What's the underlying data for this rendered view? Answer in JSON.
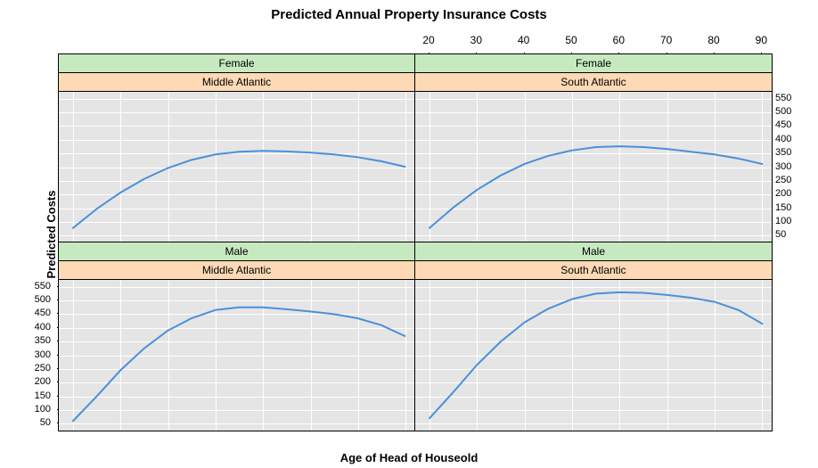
{
  "title": "Predicted Annual Property Insurance Costs",
  "xlabel": "Age of Head of Houseold",
  "ylabel": "Predicted Costs",
  "title_fontsize": 15,
  "label_fontsize": 13,
  "tick_fontsize": 12,
  "ytick_fontsize": 11,
  "strip_fontsize": 12,
  "colors": {
    "background": "#ffffff",
    "panel_bg": "#e5e5e5",
    "grid": "#ffffff",
    "line": "#4a90d9",
    "gender_strip_bg": "#c7e9c0",
    "region_strip_bg": "#fdd9b5",
    "border": "#000000",
    "text": "#000000"
  },
  "line_width": 2,
  "xlim": [
    17,
    92
  ],
  "ylim": [
    25,
    575
  ],
  "xticks": [
    20,
    30,
    40,
    50,
    60,
    70,
    80,
    90
  ],
  "yticks": [
    50,
    100,
    150,
    200,
    250,
    300,
    350,
    400,
    450,
    500,
    550
  ],
  "layout": {
    "rows": 2,
    "cols": 2,
    "top_axis_col": 1,
    "bottom_axis_col": 0,
    "left_axis_row": 1,
    "right_axis_row": 0
  },
  "panels": [
    {
      "row": 0,
      "col": 0,
      "gender": "Female",
      "region": "Middle Atlantic",
      "x": [
        20,
        25,
        30,
        35,
        40,
        45,
        50,
        55,
        60,
        65,
        70,
        75,
        80,
        85,
        90
      ],
      "y": [
        75,
        145,
        205,
        255,
        295,
        325,
        345,
        355,
        358,
        356,
        352,
        345,
        335,
        320,
        300
      ]
    },
    {
      "row": 0,
      "col": 1,
      "gender": "Female",
      "region": "South Atlantic",
      "x": [
        20,
        25,
        30,
        35,
        40,
        45,
        50,
        55,
        60,
        65,
        70,
        75,
        80,
        85,
        90
      ],
      "y": [
        75,
        150,
        215,
        268,
        310,
        340,
        360,
        372,
        375,
        372,
        365,
        355,
        345,
        330,
        310
      ]
    },
    {
      "row": 1,
      "col": 0,
      "gender": "Male",
      "region": "Middle Atlantic",
      "x": [
        20,
        25,
        30,
        35,
        40,
        45,
        50,
        55,
        60,
        65,
        70,
        75,
        80,
        85,
        90
      ],
      "y": [
        60,
        150,
        245,
        325,
        390,
        435,
        465,
        475,
        475,
        468,
        460,
        450,
        435,
        410,
        370
      ]
    },
    {
      "row": 1,
      "col": 1,
      "gender": "Male",
      "region": "South Atlantic",
      "x": [
        20,
        25,
        30,
        35,
        40,
        45,
        50,
        55,
        60,
        65,
        70,
        75,
        80,
        85,
        90
      ],
      "y": [
        70,
        165,
        265,
        350,
        420,
        470,
        505,
        525,
        530,
        528,
        520,
        510,
        495,
        465,
        415
      ]
    }
  ]
}
